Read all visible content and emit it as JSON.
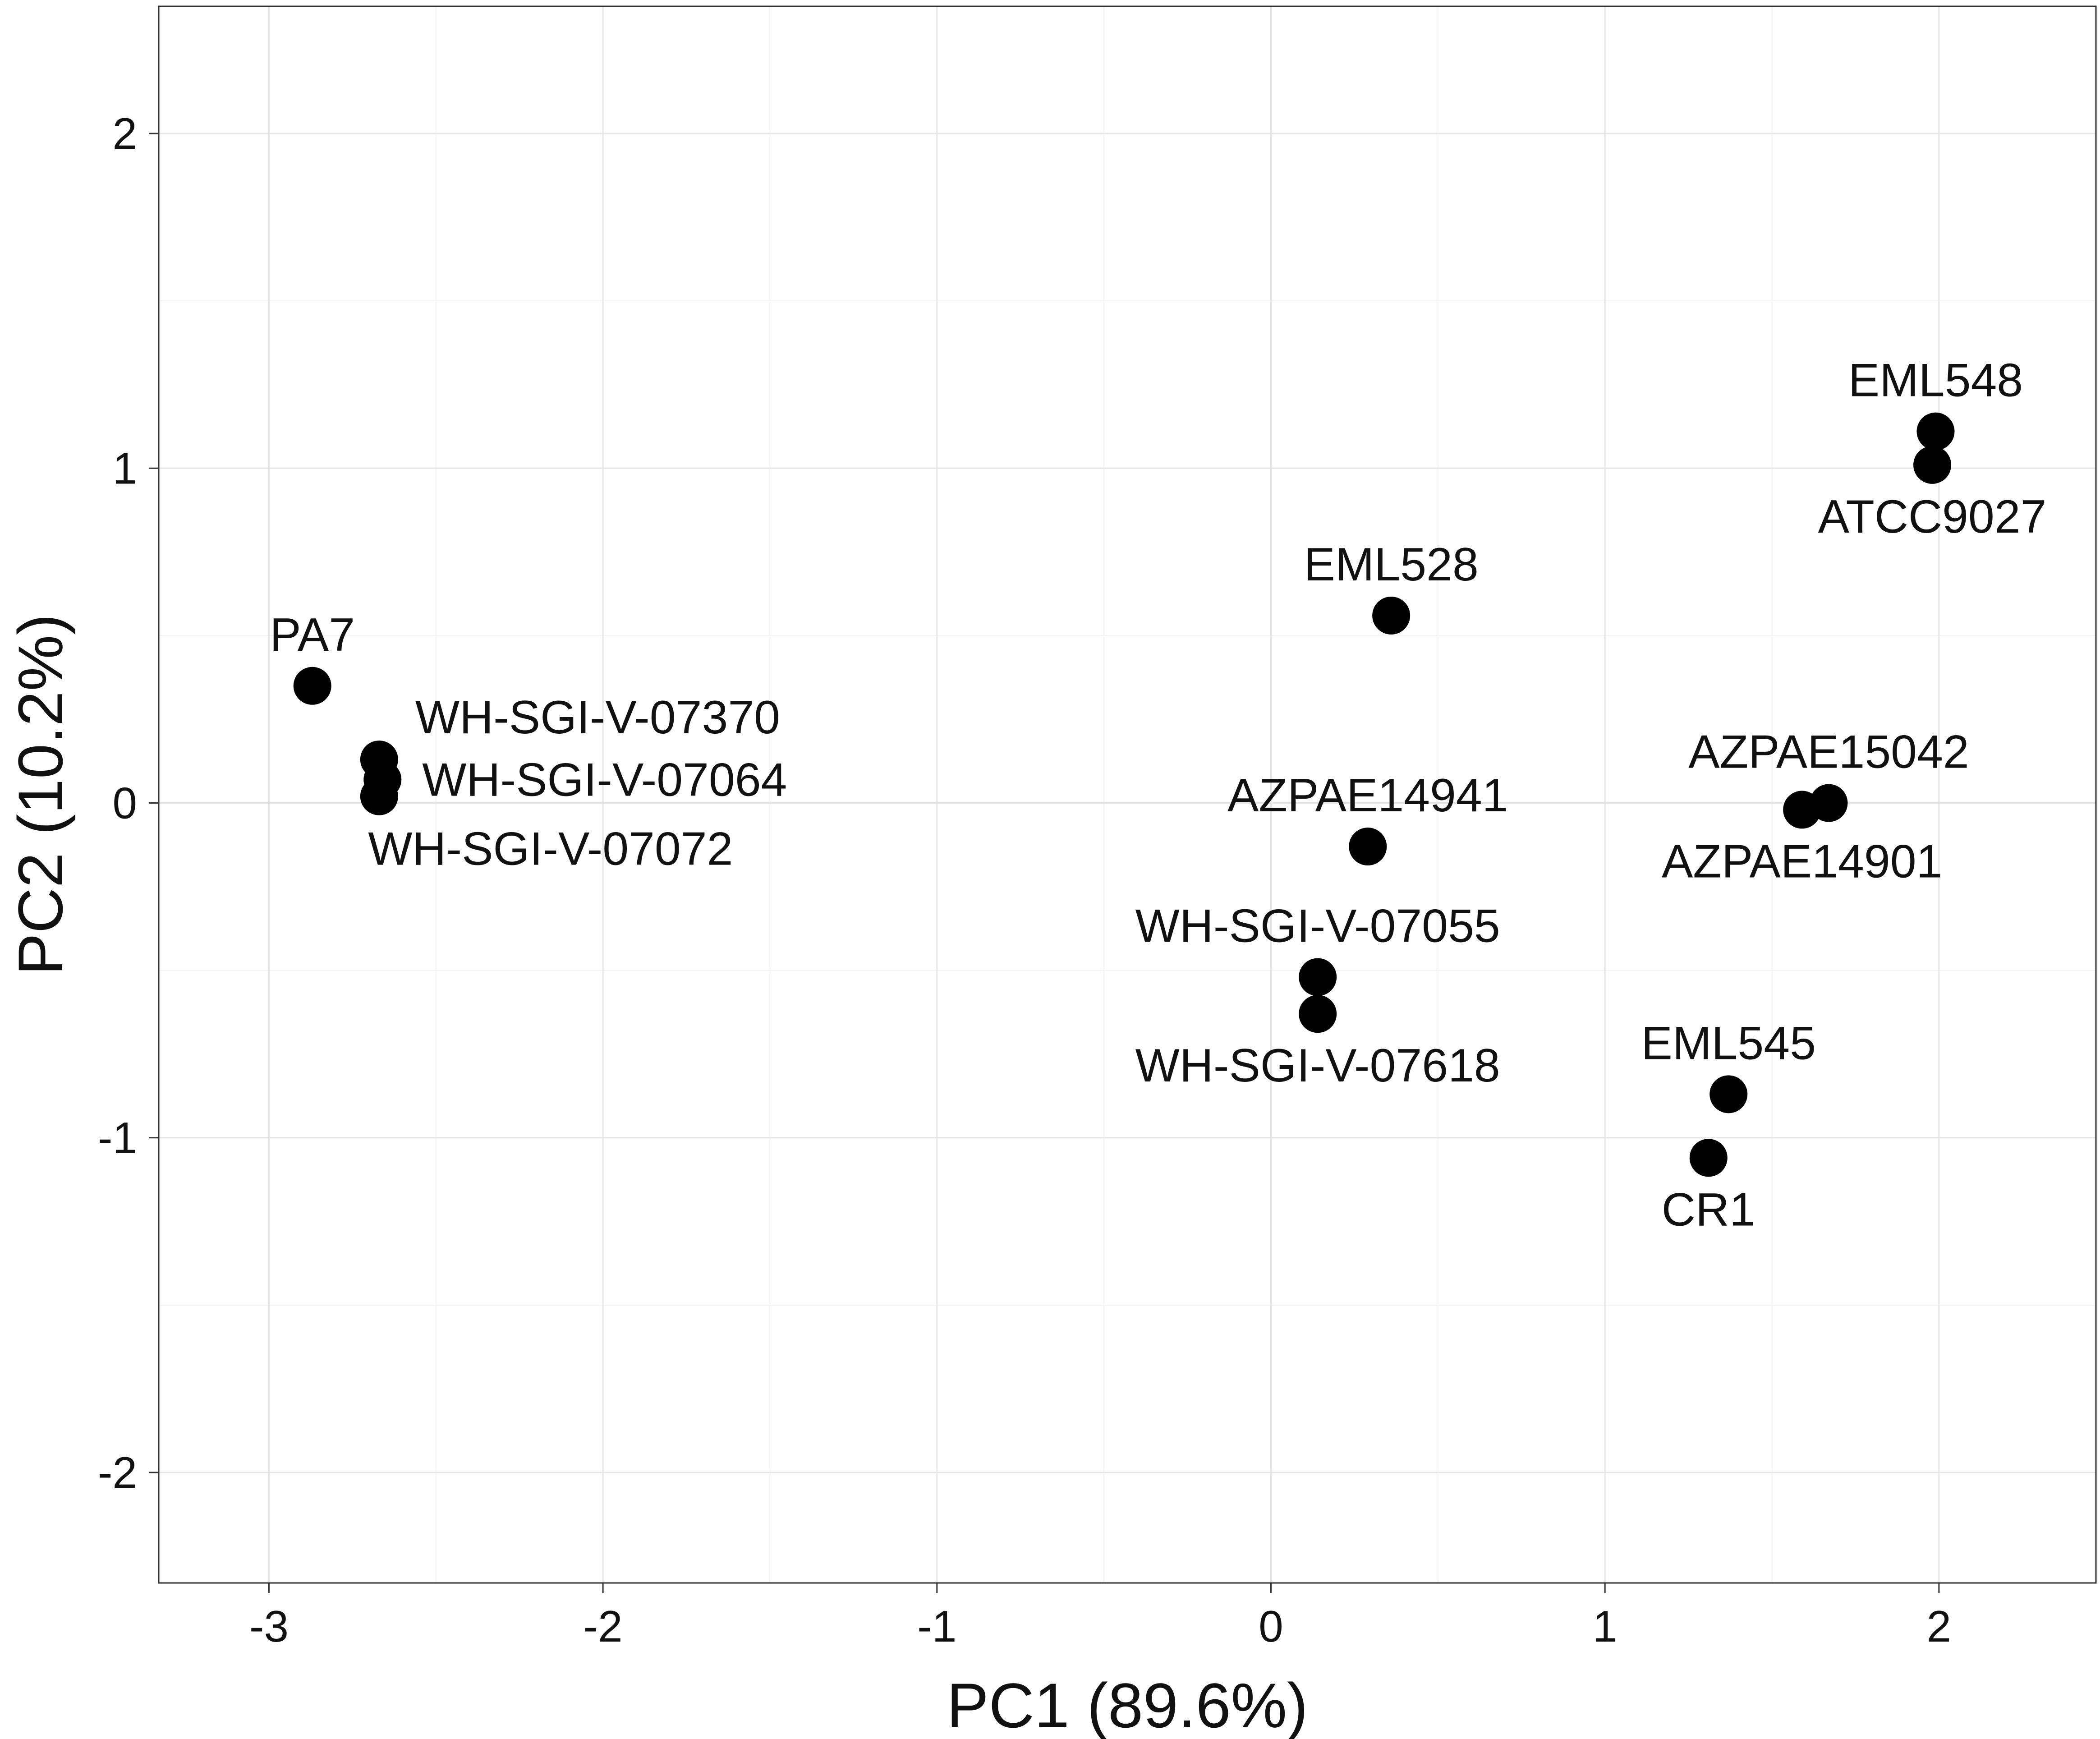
{
  "chart_data": {
    "type": "scatter",
    "title": "",
    "xlabel": "PC1 (89.6%)",
    "ylabel": "PC2 (10.2%)",
    "xlim": [
      -3.33,
      2.47
    ],
    "ylim": [
      -2.33,
      2.38
    ],
    "xticks": [
      -3,
      -2,
      -1,
      0,
      1,
      2
    ],
    "yticks": [
      -2,
      -1,
      0,
      1,
      2
    ],
    "xtick_labels": [
      "-3",
      "-2",
      "-1",
      "0",
      "1",
      "2"
    ],
    "ytick_labels": [
      "-2",
      "-1",
      "0",
      "1",
      "2"
    ],
    "grid": true,
    "legend": "none",
    "point_color": "#000000",
    "points": [
      {
        "label": "PA7",
        "x": -2.87,
        "y": 0.35,
        "label_pos": "above"
      },
      {
        "label": "WH-SGI-V-07370",
        "x": -2.67,
        "y": 0.13,
        "label_pos": "right-up"
      },
      {
        "label": "WH-SGI-V-07064",
        "x": -2.66,
        "y": 0.07,
        "label_pos": "right"
      },
      {
        "label": "WH-SGI-V-07072",
        "x": -2.67,
        "y": 0.02,
        "label_pos": "below-right"
      },
      {
        "label": "EML528",
        "x": 0.36,
        "y": 0.56,
        "label_pos": "above"
      },
      {
        "label": "AZPAE14941",
        "x": 0.29,
        "y": -0.13,
        "label_pos": "above"
      },
      {
        "label": "WH-SGI-V-07055",
        "x": 0.14,
        "y": -0.52,
        "label_pos": "above"
      },
      {
        "label": "WH-SGI-V-07618",
        "x": 0.14,
        "y": -0.63,
        "label_pos": "below"
      },
      {
        "label": "EML548",
        "x": 1.99,
        "y": 1.11,
        "label_pos": "above"
      },
      {
        "label": "ATCC9027",
        "x": 1.98,
        "y": 1.01,
        "label_pos": "below"
      },
      {
        "label": "AZPAE15042",
        "x": 1.67,
        "y": 0.0,
        "label_pos": "above"
      },
      {
        "label": "AZPAE14901",
        "x": 1.59,
        "y": -0.02,
        "label_pos": "below"
      },
      {
        "label": "EML545",
        "x": 1.37,
        "y": -0.87,
        "label_pos": "above"
      },
      {
        "label": "CR1",
        "x": 1.31,
        "y": -1.06,
        "label_pos": "below"
      }
    ]
  }
}
